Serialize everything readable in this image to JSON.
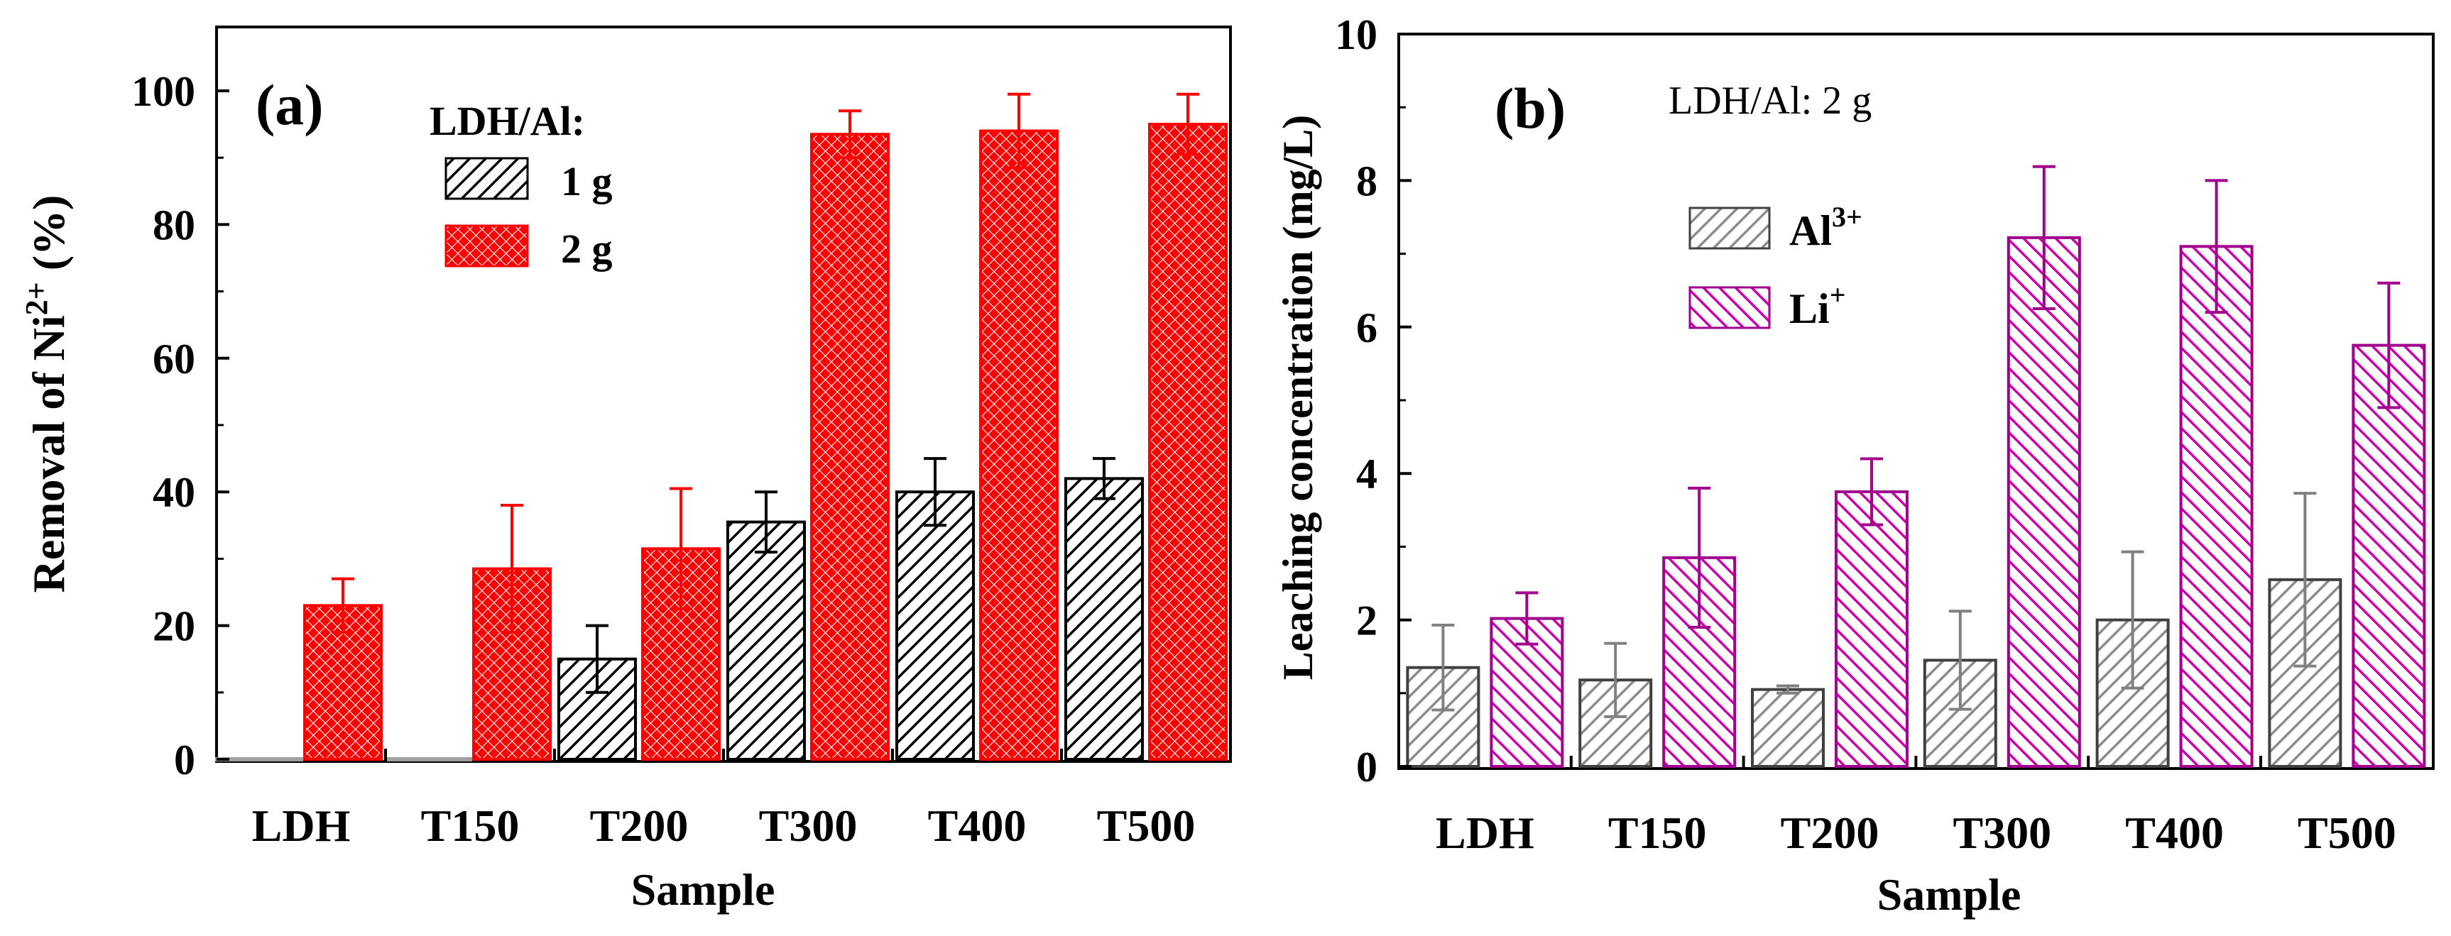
{
  "chart_data": [
    {
      "type": "bar",
      "panel_label": "(a)",
      "title": "",
      "xlabel": "Sample",
      "ylabel_prefix": "Removal of Ni",
      "ylabel_superscript": "2+",
      "ylabel_suffix": " (%)",
      "categories": [
        "LDH",
        "T150",
        "T200",
        "T300",
        "T400",
        "T500"
      ],
      "ylim": [
        0,
        110
      ],
      "yticks": [
        0,
        20,
        40,
        60,
        80,
        100
      ],
      "ytick_labels": [
        "0",
        "20",
        "40",
        "60",
        "80",
        "100"
      ],
      "legend_title": "LDH/Al:",
      "legend_position": "top-center",
      "series": [
        {
          "name": "1 g",
          "color": "#000000",
          "fill": "#ffffff",
          "pattern": "diagonal-hatch",
          "values": [
            0,
            0,
            15,
            35.5,
            40,
            42
          ],
          "errors": [
            0,
            0,
            5,
            4.5,
            5,
            3
          ],
          "placeholder_color": "#a0a0a0"
        },
        {
          "name": "2 g",
          "color": "#ff0000",
          "fill": "#ff0000",
          "pattern": "crosshatch",
          "values": [
            23,
            28.5,
            31.5,
            93.5,
            94,
            95
          ],
          "errors": [
            4,
            9.5,
            9,
            3.5,
            5.5,
            4.5
          ]
        }
      ]
    },
    {
      "type": "bar",
      "panel_label": "(b)",
      "title": "",
      "annotation": "LDH/Al: 2 g",
      "xlabel": "Sample",
      "ylabel": "Leaching concentration (mg/L)",
      "categories": [
        "LDH",
        "T150",
        "T200",
        "T300",
        "T400",
        "T500"
      ],
      "ylim": [
        0,
        10
      ],
      "yticks": [
        0,
        2,
        4,
        6,
        8,
        10
      ],
      "ytick_labels": [
        "0",
        "2",
        "4",
        "6",
        "8",
        "10"
      ],
      "legend_position": "upper-left-center",
      "series": [
        {
          "name_base": "Al",
          "name_superscript": "3+",
          "color": "#404040",
          "fill": "#8c8c8c",
          "pattern": "diagonal-hatch",
          "values": [
            1.35,
            1.18,
            1.05,
            1.45,
            2.0,
            2.55
          ],
          "errors": [
            0.58,
            0.5,
            0.05,
            0.67,
            0.93,
            1.18
          ]
        },
        {
          "name_base": "Li",
          "name_superscript": "+",
          "color": "#a0008c",
          "fill": "#cc00aa",
          "pattern": "back-diagonal-hatch",
          "values": [
            2.02,
            2.85,
            3.75,
            7.22,
            7.1,
            5.75
          ],
          "errors": [
            0.35,
            0.95,
            0.45,
            0.97,
            0.9,
            0.85
          ]
        }
      ]
    }
  ]
}
